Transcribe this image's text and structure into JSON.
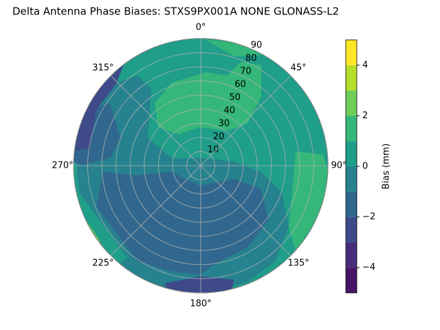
{
  "chart_data": {
    "type": "polar-contour",
    "title": "Delta Antenna Phase Biases: STXS9PX001A     NONE GLONASS-L2",
    "rlim": [
      0,
      90
    ],
    "rticks": [
      10,
      20,
      30,
      40,
      50,
      60,
      70,
      80,
      90
    ],
    "thetaticks": [
      {
        "value": 0,
        "label": "0°"
      },
      {
        "value": 45,
        "label": "45°"
      },
      {
        "value": 90,
        "label": "90°"
      },
      {
        "value": 135,
        "label": "135°"
      },
      {
        "value": 180,
        "label": "180°"
      },
      {
        "value": 225,
        "label": "225°"
      },
      {
        "value": 270,
        "label": "270°"
      },
      {
        "value": 315,
        "label": "315°"
      }
    ],
    "grid": true,
    "levels": [
      -5,
      -4,
      -3,
      -2,
      -1,
      0,
      1,
      2,
      3,
      4,
      5
    ],
    "colors": [
      "#481467",
      "#472d7b",
      "#3e4a89",
      "#31678e",
      "#26828e",
      "#1f9e89",
      "#35b779",
      "#6ece58",
      "#b5de2b",
      "#fde725"
    ],
    "colorbar_label": "Bias (mm)",
    "colorbar_lim": [
      -5,
      5
    ],
    "colorbar_ticks": [
      {
        "value": -4,
        "label": "−4"
      },
      {
        "value": -2,
        "label": "−2"
      },
      0,
      2,
      4
    ]
  }
}
